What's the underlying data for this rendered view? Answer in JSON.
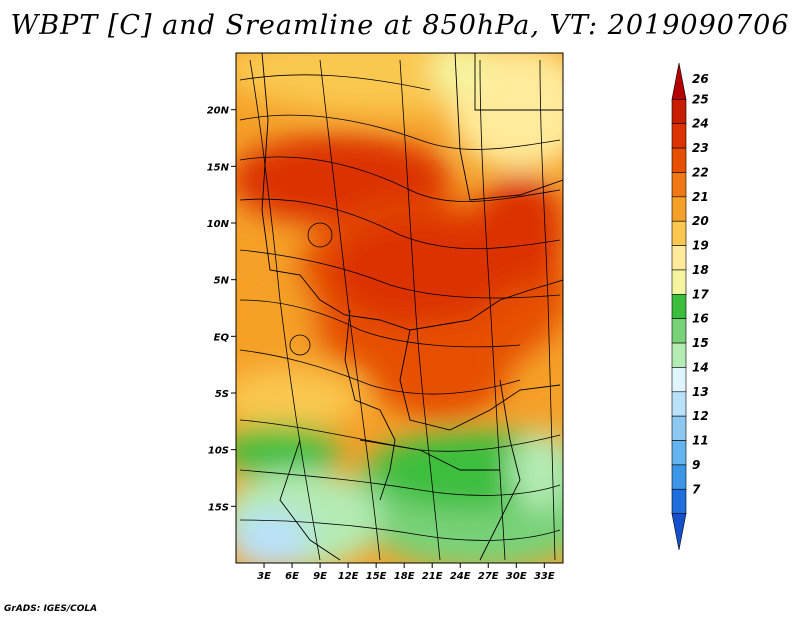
{
  "title": "WBPT [C] and Sreamline at 850hPa, VT: 2019090706",
  "credit": "GrADS: IGES/COLA",
  "lat_axis": {
    "labels": [
      "20N",
      "15N",
      "10N",
      "5N",
      "EQ",
      "5S",
      "10S",
      "15S"
    ],
    "values": [
      20,
      15,
      10,
      5,
      0,
      -5,
      -10,
      -15
    ],
    "range": [
      -20,
      25
    ]
  },
  "lon_axis": {
    "labels": [
      "3E",
      "6E",
      "9E",
      "12E",
      "15E",
      "18E",
      "21E",
      "24E",
      "27E",
      "30E",
      "33E"
    ],
    "values": [
      3,
      6,
      9,
      12,
      15,
      18,
      21,
      24,
      27,
      30,
      33
    ],
    "range": [
      0,
      35
    ]
  },
  "colorbar": {
    "labels": [
      "26",
      "25",
      "24",
      "23",
      "22",
      "21",
      "20",
      "19",
      "18",
      "17",
      "16",
      "15",
      "14",
      "13",
      "12",
      "11",
      "9",
      "7"
    ],
    "colors": [
      "#b40000",
      "#c81e00",
      "#dc3200",
      "#e65000",
      "#f07814",
      "#f5a028",
      "#fac850",
      "#ffeb9b",
      "#f5f5a0",
      "#3cbe3c",
      "#78d278",
      "#b4ebb4",
      "#e1f5ff",
      "#b9e1fa",
      "#8cc8f0",
      "#64b4f0",
      "#3c96e6",
      "#1e6ede",
      "#1450cc"
    ]
  }
}
